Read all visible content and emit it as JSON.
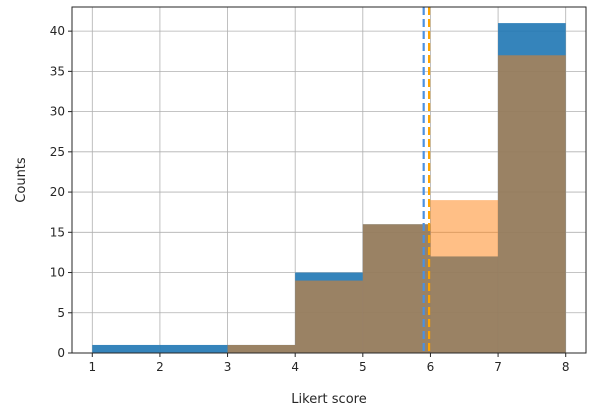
{
  "chart_data": {
    "type": "bar",
    "title": "",
    "xlabel": "Likert score",
    "ylabel": "Counts",
    "xlim": [
      0.7,
      8.3
    ],
    "ylim": [
      0,
      43
    ],
    "xticks": [
      1,
      2,
      3,
      4,
      5,
      6,
      7,
      8
    ],
    "yticks": [
      0,
      5,
      10,
      15,
      20,
      25,
      30,
      35,
      40
    ],
    "grid": true,
    "bin_edges": [
      1,
      2,
      3,
      4,
      5,
      6,
      7,
      8
    ],
    "series": [
      {
        "color": "#1f77b4",
        "opacity": 0.9,
        "values": [
          1,
          1,
          1,
          10,
          16,
          12,
          41
        ]
      },
      {
        "color": "#ff7f0e",
        "opacity": 0.5,
        "values": [
          0,
          0,
          1,
          9,
          16,
          19,
          37
        ]
      }
    ],
    "reference_lines": [
      {
        "x": 5.9,
        "color": "#4a90e2",
        "style": "dashed"
      },
      {
        "x": 5.98,
        "color": "#ffa500",
        "style": "dashed"
      }
    ]
  }
}
